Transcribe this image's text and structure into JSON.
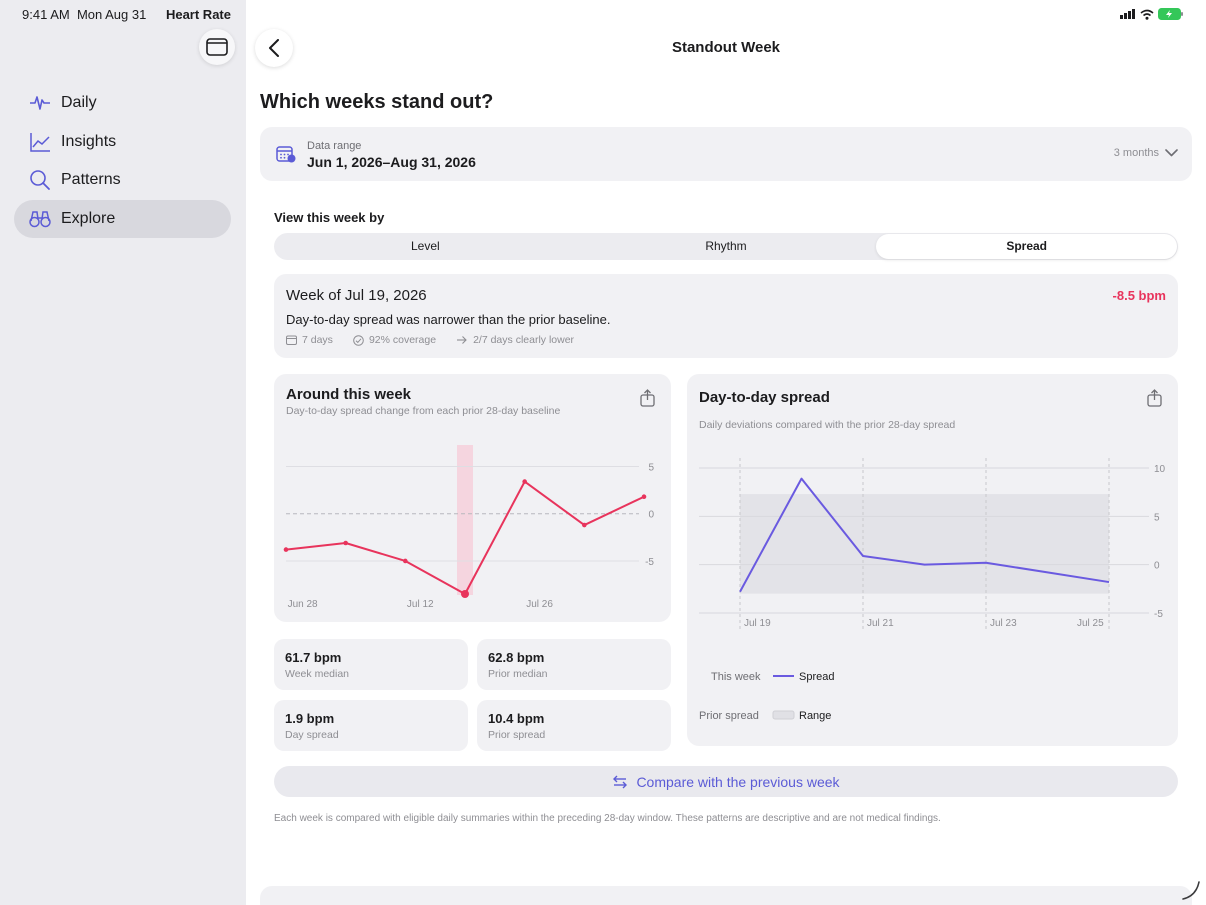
{
  "status": {
    "time": "9:41 AM",
    "date": "Mon Aug 31",
    "app_name": "Heart Rate"
  },
  "sidebar": {
    "items": [
      {
        "label": "Daily",
        "icon": "waveform-icon"
      },
      {
        "label": "Insights",
        "icon": "line-chart-icon"
      },
      {
        "label": "Patterns",
        "icon": "search-icon"
      },
      {
        "label": "Explore",
        "icon": "binoculars-icon",
        "active": true
      }
    ]
  },
  "header": {
    "title": "Standout Week"
  },
  "page_heading": "Which weeks stand out?",
  "range": {
    "label": "Data range",
    "value": "Jun 1, 2026–Aug 31, 2026",
    "selector": "3 months"
  },
  "view_by": {
    "label": "View this week by",
    "options": [
      "Level",
      "Rhythm",
      "Spread"
    ],
    "selected": "Spread"
  },
  "week": {
    "title": "Week of Jul 19, 2026",
    "delta": "-8.5 bpm",
    "description": "Day-to-day spread was narrower than the prior baseline.",
    "days": "7 days",
    "coverage": "92% coverage",
    "lower": "2/7 days clearly lower"
  },
  "around": {
    "title": "Around this week",
    "subtitle": "Day-to-day spread change from each prior 28-day baseline"
  },
  "spread_card": {
    "title": "Day-to-day spread",
    "subtitle": "Daily deviations compared with the prior 28-day spread",
    "legend_this_week": "This week",
    "legend_spread": "Spread",
    "legend_prior": "Prior spread",
    "legend_range": "Range"
  },
  "stats": [
    {
      "value": "61.7 bpm",
      "label": "Week median"
    },
    {
      "value": "62.8 bpm",
      "label": "Prior median"
    },
    {
      "value": "1.9 bpm",
      "label": "Day spread"
    },
    {
      "value": "10.4 bpm",
      "label": "Prior spread"
    }
  ],
  "compare_button": "Compare with the previous week",
  "disclaimer": "Each week is compared with eligible daily summaries within the preceding 28-day window. These patterns are descriptive and are not medical findings.",
  "colors": {
    "accent": "#5b5bd6",
    "negative": "#e8345c",
    "series_line": "#6a5ae0",
    "highlight": "#f7c9d5"
  },
  "chart_data": [
    {
      "type": "line",
      "title": "Around this week",
      "x_ticks": [
        "Jun 28",
        "Jul 12",
        "Jul 26"
      ],
      "y_ticks": [
        5,
        0,
        -5
      ],
      "ylim": [
        -8.5,
        9.5
      ],
      "x_index_range": [
        0,
        6
      ],
      "highlight_index": 3,
      "series": [
        {
          "values": [
            -3.8,
            -3.1,
            -5.0,
            -8.5,
            3.4,
            -1.2,
            1.8
          ]
        }
      ]
    },
    {
      "type": "line",
      "title": "Day-to-day spread",
      "x_ticks": [
        "Jul 19",
        "Jul 21",
        "Jul 23",
        "Jul 25"
      ],
      "y_ticks": [
        10,
        5,
        0,
        -5
      ],
      "ylim": [
        -5,
        10
      ],
      "x_index_range": [
        0,
        6
      ],
      "band": [
        -3,
        7.3
      ],
      "series": [
        {
          "name": "Spread",
          "values": [
            -2.8,
            8.9,
            0.9,
            0.0,
            0.2,
            -0.8,
            -1.8
          ]
        }
      ]
    }
  ]
}
